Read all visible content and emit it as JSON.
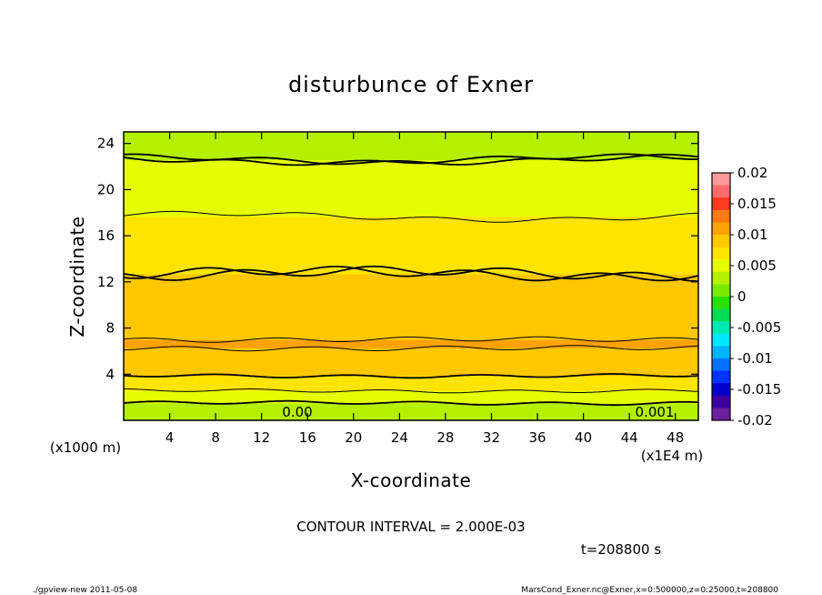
{
  "chart_data": {
    "type": "contour",
    "title": "disturbunce of Exner",
    "xlabel": "X-coordinate",
    "ylabel": "Z-coordinate",
    "x_unit_label": "(x1E4 m)",
    "y_unit_label": "(x1000 m)",
    "xlim": [
      0,
      50
    ],
    "ylim": [
      0,
      25
    ],
    "x_ticks": [
      4,
      8,
      12,
      16,
      20,
      24,
      28,
      32,
      36,
      40,
      44,
      48
    ],
    "y_ticks": [
      4,
      8,
      12,
      16,
      20,
      24
    ],
    "contour_interval_text": "CONTOUR INTERVAL = 2.000E-03",
    "contour_labels": [
      {
        "text": "0.00",
        "x": 15,
        "z": 0.8
      },
      {
        "text": "0.001",
        "x": 46,
        "z": 0.8
      }
    ],
    "colorbar": {
      "ticks": [
        "0.02",
        "0.015",
        "0.01",
        "0.005",
        "0",
        "-0.005",
        "-0.01",
        "-0.015",
        "-0.02"
      ],
      "levels": [
        0.02,
        0.015,
        0.01,
        0.005,
        0,
        -0.005,
        -0.01,
        -0.015,
        -0.02
      ],
      "colors": [
        "#ff9a9a",
        "#ff6b6b",
        "#ff3a1e",
        "#ff7a14",
        "#ffa200",
        "#ffc800",
        "#ffe400",
        "#e6ff00",
        "#b4f000",
        "#7aeb00",
        "#28e000",
        "#00dc52",
        "#00e8b4",
        "#00e8ff",
        "#00b4ff",
        "#0072ff",
        "#0032ff",
        "#0000c8",
        "#3c00a0",
        "#6a1fa0"
      ]
    },
    "vertical_profile": [
      {
        "z": 0.0,
        "value": 0.002
      },
      {
        "z": 1.0,
        "value": 0.003
      },
      {
        "z": 2.0,
        "value": 0.005
      },
      {
        "z": 3.0,
        "value": 0.0068
      },
      {
        "z": 4.0,
        "value": 0.0082
      },
      {
        "z": 6.5,
        "value": 0.0102
      },
      {
        "z": 9.0,
        "value": 0.0092
      },
      {
        "z": 12.7,
        "value": 0.008
      },
      {
        "z": 16.0,
        "value": 0.0066
      },
      {
        "z": 19.3,
        "value": 0.0054
      },
      {
        "z": 22.6,
        "value": 0.004
      },
      {
        "z": 25.0,
        "value": 0.0034
      }
    ],
    "time_label": "t=208800 s",
    "grid": false
  },
  "footer": {
    "left": "./gpview-new   2011-05-08",
    "right": "MarsCond_Exner.nc@Exner,x=0:500000,z=0:25000,t=208800"
  }
}
